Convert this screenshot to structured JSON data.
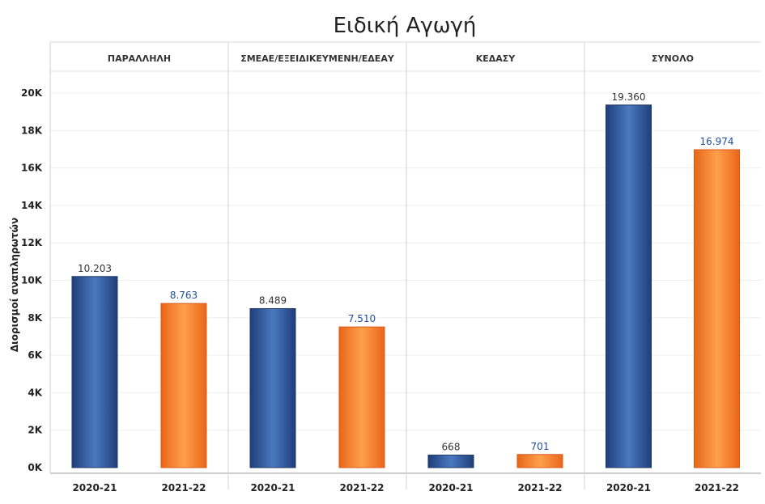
{
  "chart_data": {
    "type": "bar",
    "title": "Ειδική Αγωγή",
    "ylabel": "Διορισμοί αναπληρωτών",
    "xlabel": "",
    "ylim": [
      0,
      21000
    ],
    "yticks": [
      0,
      2000,
      4000,
      6000,
      8000,
      10000,
      12000,
      14000,
      16000,
      18000,
      20000
    ],
    "ytick_labels": [
      "0K",
      "2K",
      "4K",
      "6K",
      "8K",
      "10K",
      "12K",
      "14K",
      "16K",
      "18K",
      "20K"
    ],
    "grid": true,
    "categories": [
      "2020-21",
      "2021-22"
    ],
    "panels": [
      {
        "name": "ΠΑΡΑΛΛΗΛΗ",
        "values": [
          10203,
          8763
        ],
        "labels": [
          "10.203",
          "8.763"
        ]
      },
      {
        "name": "ΣΜΕΑΕ/ΕΞΕΙΔΙΚΕΥΜΕΝΗ/ΕΔΕΑΥ",
        "values": [
          8489,
          7510
        ],
        "labels": [
          "8.489",
          "7.510"
        ]
      },
      {
        "name": "ΚΕΔΑΣΥ",
        "values": [
          668,
          701
        ],
        "labels": [
          "668",
          "701"
        ]
      },
      {
        "name": "ΣΥΝΟΛΟ",
        "values": [
          19360,
          16974
        ],
        "labels": [
          "19.360",
          "16.974"
        ]
      }
    ],
    "colors": {
      "2020-21": "#2f5597",
      "2021-22": "#f47c20",
      "label_2020-21": "#333333",
      "label_2021-22": "#1f4e9a"
    }
  }
}
